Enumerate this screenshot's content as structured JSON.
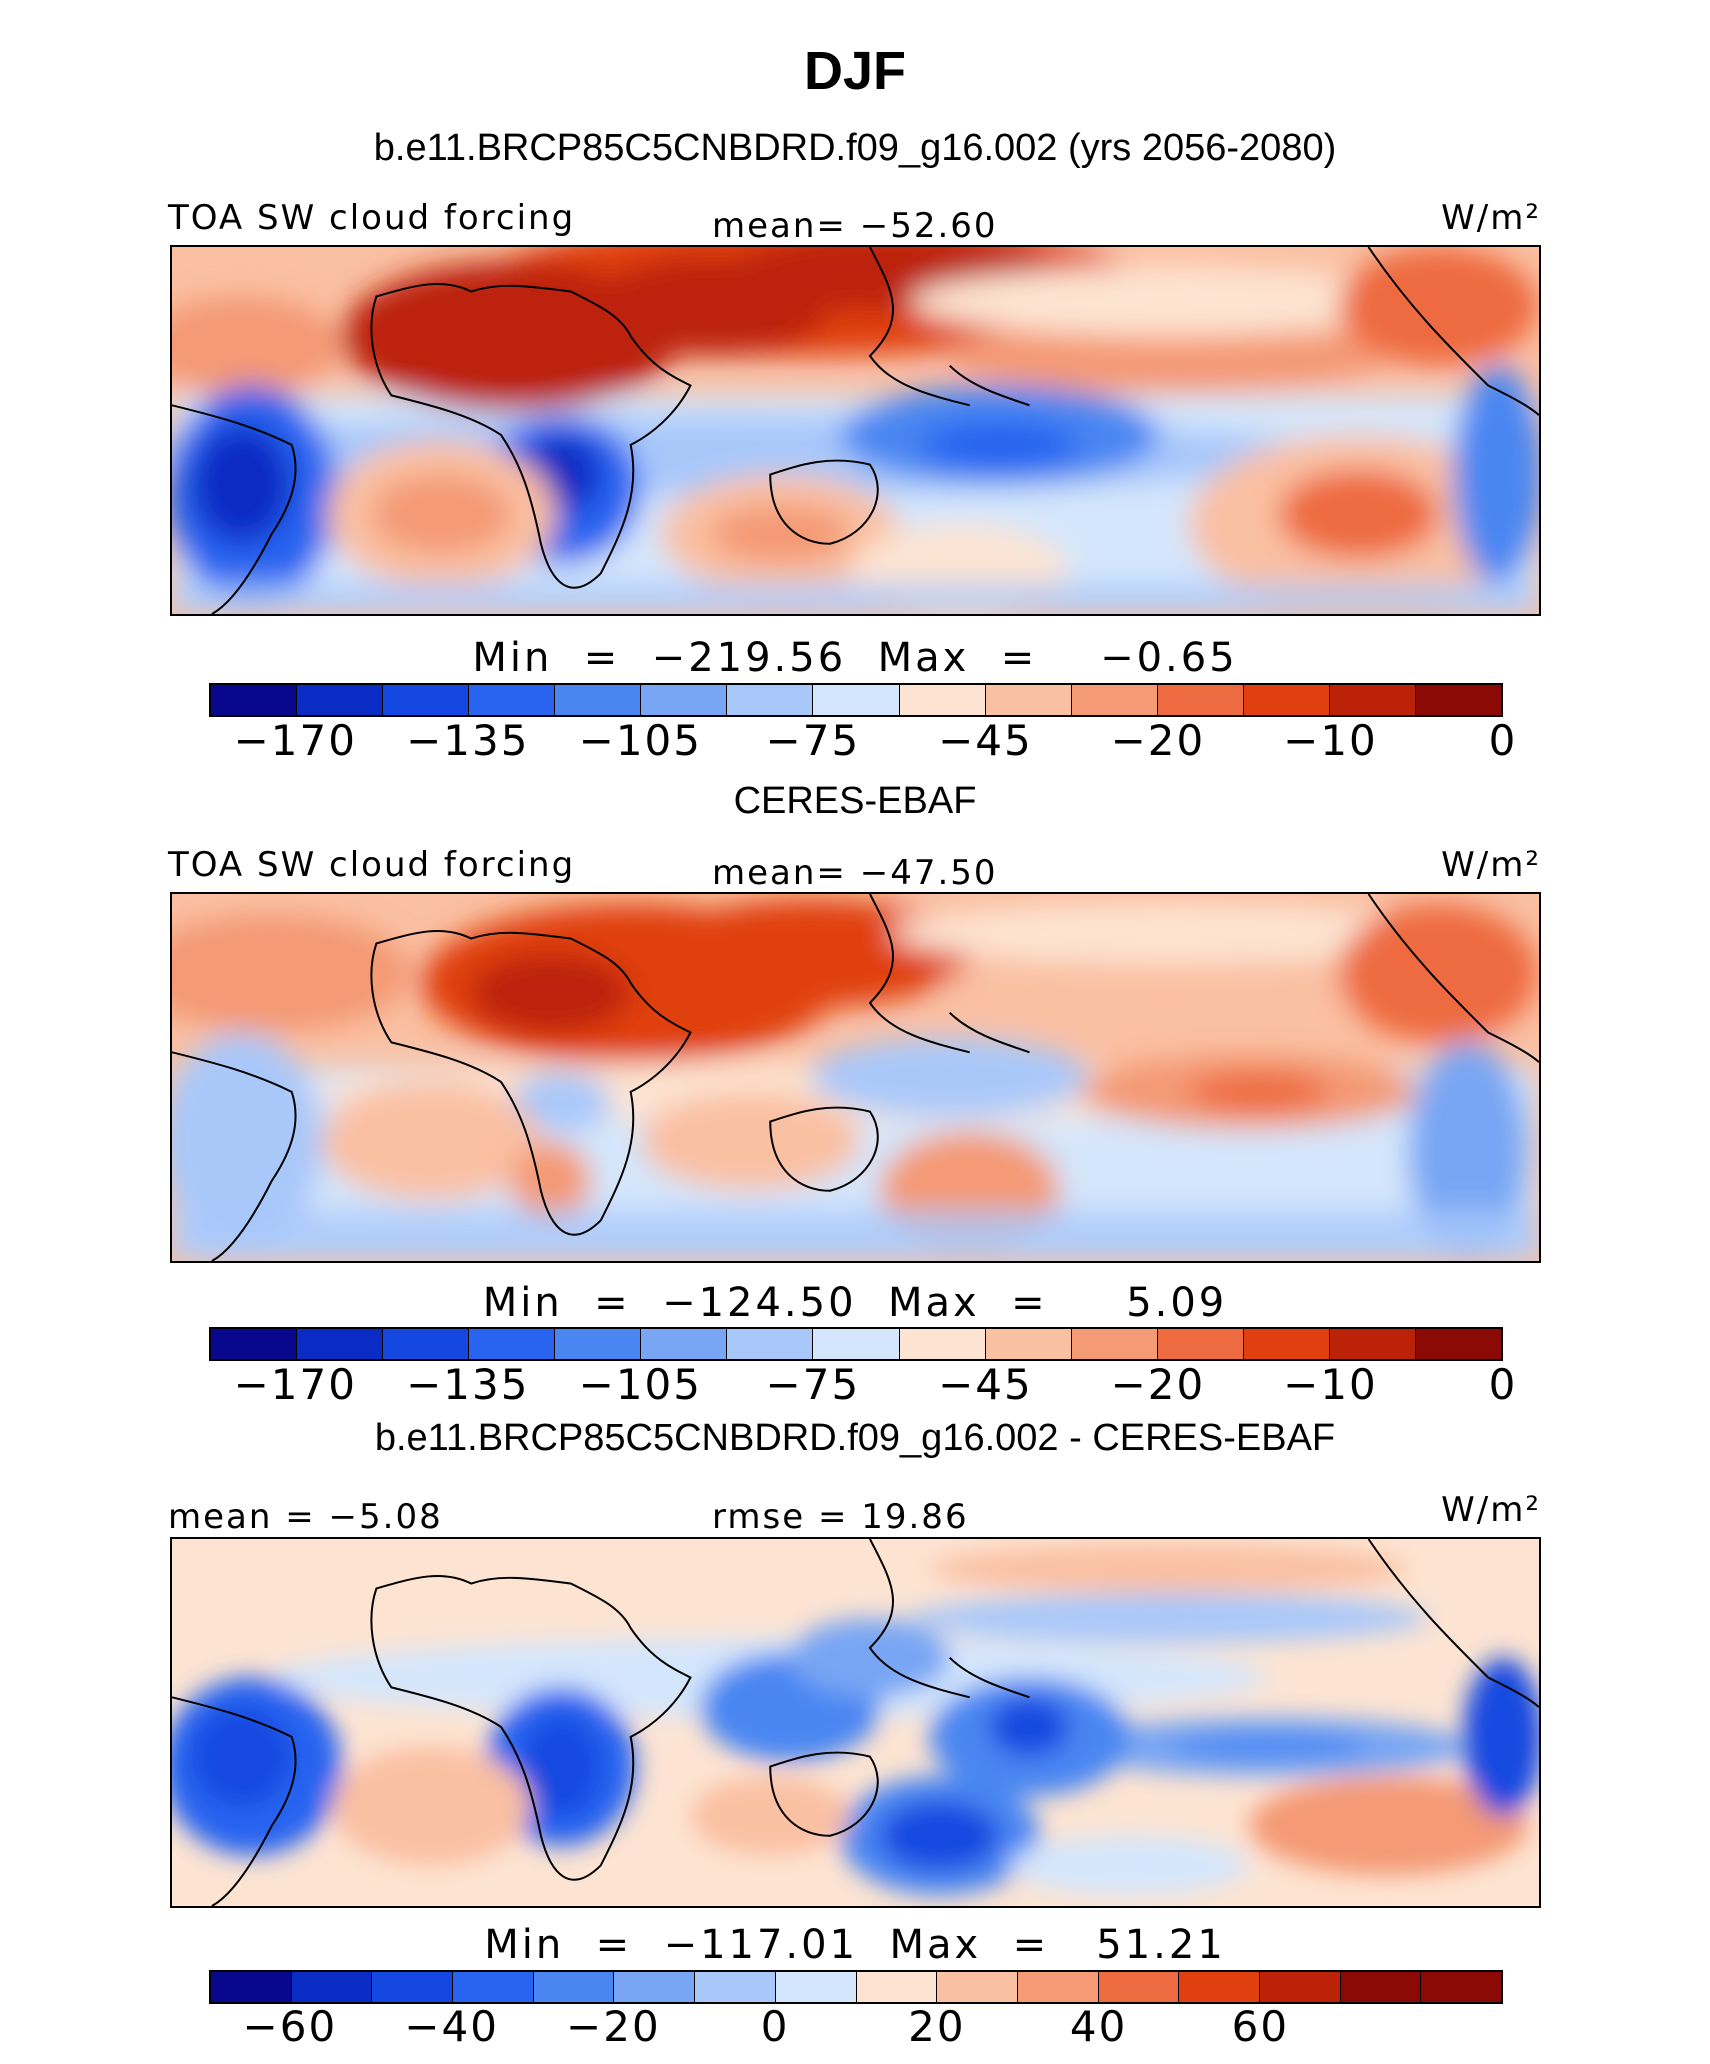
{
  "title": "DJF",
  "panels": [
    {
      "heading": "b.e11.BRCP85C5CNBDRD.f09_g16.002 (yrs 2056-2080)",
      "left_label": "TOA SW cloud forcing",
      "center_label": "mean= −52.60",
      "units_label": "W/m²",
      "minmax": "Min  =  −219.56  Max  =    −0.65",
      "colorbar_ticks": [
        "−170",
        "−135",
        "−105",
        "−75",
        "−45",
        "−20",
        "−10",
        "0"
      ]
    },
    {
      "heading": "CERES-EBAF",
      "left_label": "TOA SW cloud forcing",
      "center_label": "mean= −47.50",
      "units_label": "W/m²",
      "minmax": "Min  =  −124.50  Max  =     5.09",
      "colorbar_ticks": [
        "−170",
        "−135",
        "−105",
        "−75",
        "−45",
        "−20",
        "−10",
        "0"
      ]
    },
    {
      "heading": "b.e11.BRCP85C5CNBDRD.f09_g16.002 - CERES-EBAF",
      "left_label": "mean =   −5.08",
      "center_label": "rmse =   19.86",
      "units_label": "W/m²",
      "minmax": "Min  =  −117.01  Max  =   51.21",
      "colorbar_ticks": [
        "−60",
        "−40",
        "−20",
        "0",
        "20",
        "40",
        "60"
      ]
    }
  ],
  "colorbar_colors": [
    "#08088c",
    "#0a2cc4",
    "#1448e0",
    "#2864f0",
    "#4a86f2",
    "#78a6f4",
    "#a8c8fa",
    "#d4e6fc",
    "#fde4d2",
    "#fac0a2",
    "#f49a74",
    "#ee6a40",
    "#e04010",
    "#bc2208",
    "#8c0a06"
  ],
  "colorbar_colors_diff": [
    "#08088c",
    "#0a2cc4",
    "#1448e0",
    "#2864f0",
    "#4a86f2",
    "#78a6f4",
    "#a8c8fa",
    "#d4e6fc",
    "#fde4d2",
    "#fac0a2",
    "#f49a74",
    "#ee6a40",
    "#e04010",
    "#bc2208",
    "#8c0a06",
    "#8c0a06"
  ]
}
